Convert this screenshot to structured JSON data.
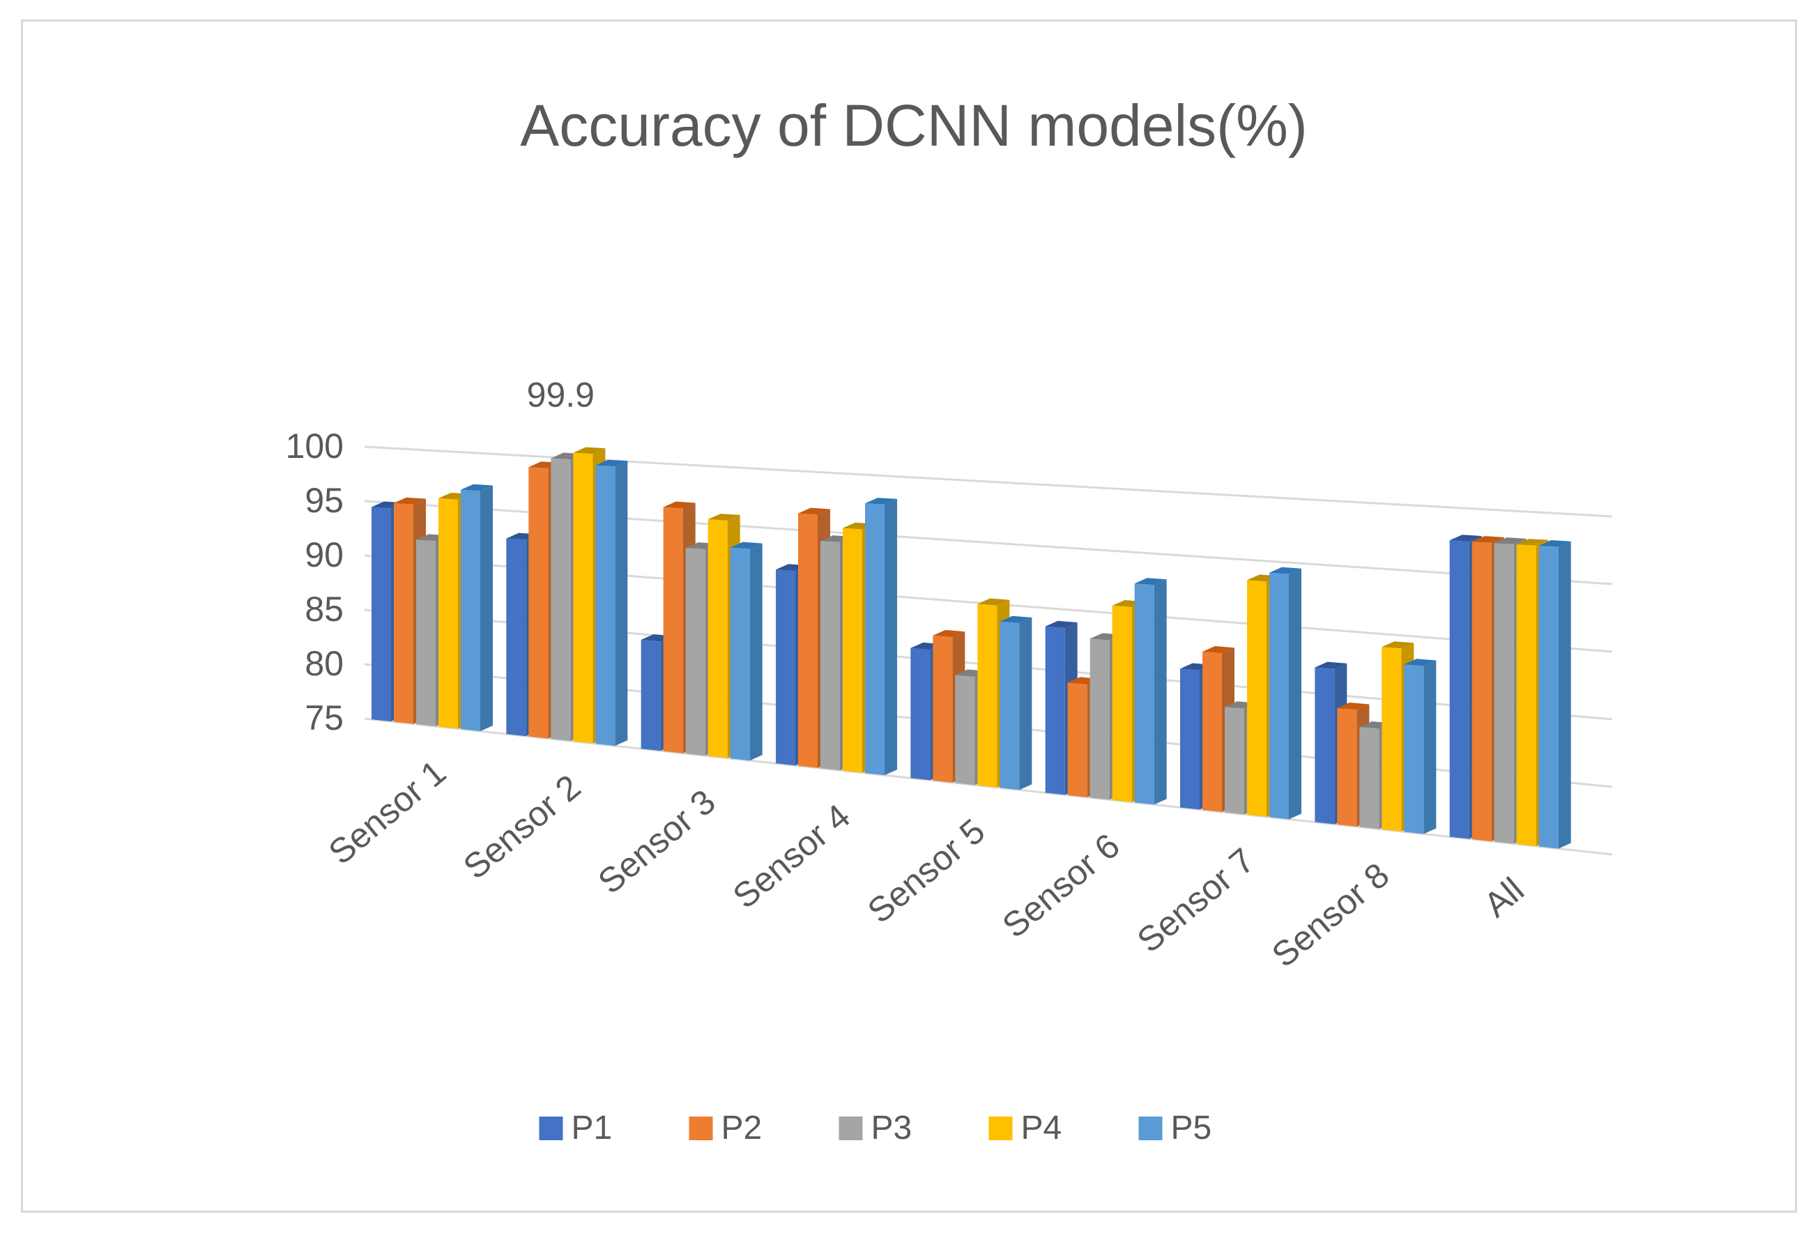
{
  "chart_data": {
    "type": "bar",
    "title": "Accuracy of DCNN models(%)",
    "xlabel": "",
    "ylabel": "",
    "ylim": [
      75,
      100
    ],
    "yticks": [
      75,
      80,
      85,
      90,
      95,
      100
    ],
    "grid": true,
    "legend_position": "bottom",
    "categories": [
      "Sensor 1",
      "Sensor 2",
      "Sensor 3",
      "Sensor 4",
      "Sensor 5",
      "Sensor 6",
      "Sensor 7",
      "Sensor 8",
      "All"
    ],
    "series": [
      {
        "name": "P1",
        "color": "#4472c4",
        "top_color": "#2f5597",
        "side_color": "#365f9e",
        "values": [
          94.5,
          92.5,
          84.5,
          91.5,
          85.8,
          88.5,
          86,
          87,
          97.5
        ]
      },
      {
        "name": "P2",
        "color": "#ed7d31",
        "top_color": "#c55a11",
        "side_color": "#b3612a",
        "values": [
          95,
          99,
          96.2,
          96.4,
          87,
          84.1,
          87.5,
          84,
          97.5
        ]
      },
      {
        "name": "P3",
        "color": "#a5a5a5",
        "top_color": "#7f7f7f",
        "side_color": "#858585",
        "values": [
          91.8,
          99.9,
          92.8,
          94.2,
          83.9,
          87.8,
          83.3,
          82.7,
          97.5
        ]
      },
      {
        "name": "P4",
        "color": "#ffc000",
        "top_color": "#bf9000",
        "side_color": "#c79600",
        "values": [
          95.7,
          100.5,
          95.4,
          95.4,
          89.9,
          90.6,
          93.4,
          89,
          97.5
        ]
      },
      {
        "name": "P5",
        "color": "#5b9bd5",
        "top_color": "#2e75b6",
        "side_color": "#3d78ad",
        "values": [
          96.6,
          99.5,
          93.1,
          97.6,
          88.6,
          92.5,
          94.1,
          87.8,
          97.5
        ]
      }
    ],
    "data_labels": [
      {
        "series": "P3",
        "category": "Sensor 2",
        "text": "99.9"
      }
    ]
  }
}
